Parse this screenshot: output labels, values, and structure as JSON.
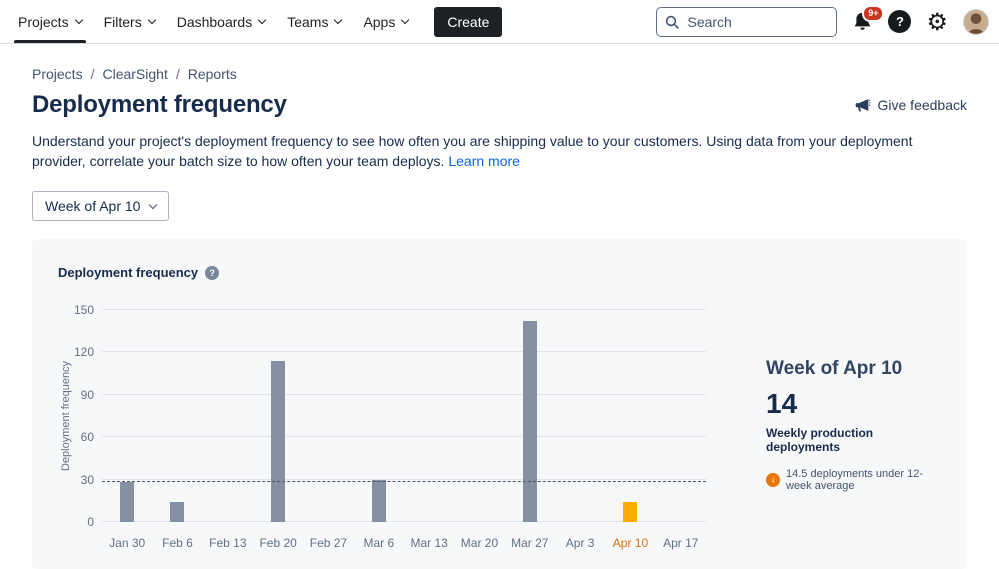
{
  "nav": {
    "items": [
      "Projects",
      "Filters",
      "Dashboards",
      "Teams",
      "Apps"
    ],
    "active_item": "Projects",
    "create_label": "Create",
    "search_placeholder": "Search",
    "notification_badge": "9+"
  },
  "breadcrumb": {
    "items": [
      "Projects",
      "ClearSight",
      "Reports"
    ]
  },
  "page": {
    "title": "Deployment frequency",
    "give_feedback": "Give feedback",
    "description": "Understand your project's deployment frequency to see how often you are shipping value to your customers. Using data from your deployment provider, correlate your batch size to how often your team deploys.",
    "learn_more": "Learn more",
    "week_selector": "Week of Apr 10"
  },
  "chart_data": {
    "type": "bar",
    "title": "Deployment frequency",
    "ylabel": "Deployment frequency",
    "categories": [
      "Jan 30",
      "Feb 6",
      "Feb 13",
      "Feb 20",
      "Feb 27",
      "Mar 6",
      "Mar 13",
      "Mar 20",
      "Mar 27",
      "Apr 3",
      "Apr 10",
      "Apr 17"
    ],
    "values": [
      28,
      14,
      0,
      114,
      0,
      30,
      0,
      0,
      142,
      0,
      14,
      0
    ],
    "highlight_category": "Apr 10",
    "average_line": 28.5,
    "ylim": [
      0,
      150
    ],
    "yticks": [
      0,
      30,
      60,
      90,
      120,
      150
    ],
    "grid": true,
    "legend": false,
    "bar_color": "#8590a2",
    "highlight_color": "#ffab00"
  },
  "summary": {
    "title": "Week of Apr 10",
    "value": "14",
    "label": "Weekly production deployments",
    "note": "14.5 deployments under 12-week average"
  },
  "colors": {
    "link_blue": "#0c66e4",
    "badge_red": "#ca3521",
    "bar_slate": "#8590a2",
    "highlight_amber": "#ffab00",
    "x_highlight_orange": "#d97008",
    "note_icon_orange": "#e8740c",
    "card_background": "#f7f8f9"
  }
}
